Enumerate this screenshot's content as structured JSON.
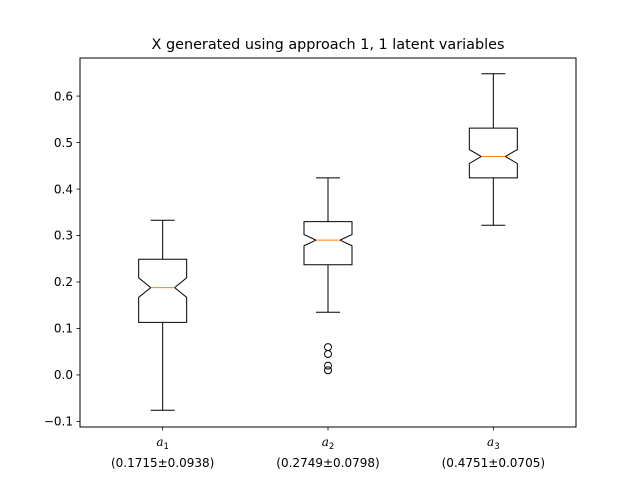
{
  "chart_data": {
    "type": "box",
    "title": "X generated using approach 1, 1 latent variables",
    "xlabel": "",
    "ylabel": "",
    "ylim": [
      -0.112,
      0.682
    ],
    "yticks": [
      -0.1,
      0.0,
      0.1,
      0.2,
      0.3,
      0.4,
      0.5,
      0.6
    ],
    "ytick_labels": [
      "−0.1",
      "0.0",
      "0.1",
      "0.2",
      "0.3",
      "0.4",
      "0.5",
      "0.6"
    ],
    "notched": true,
    "grid": false,
    "categories": [
      {
        "base": "a",
        "sub": "1",
        "stats": "(0.1715±0.0938)"
      },
      {
        "base": "a",
        "sub": "2",
        "stats": "(0.2749±0.0798)"
      },
      {
        "base": "a",
        "sub": "3",
        "stats": "(0.4751±0.0705)"
      }
    ],
    "boxes": [
      {
        "whisker_low": -0.076,
        "q1": 0.113,
        "median": 0.188,
        "q3": 0.249,
        "whisker_high": 0.333,
        "notch_low": 0.167,
        "notch_high": 0.209,
        "outliers": []
      },
      {
        "whisker_low": 0.135,
        "q1": 0.237,
        "median": 0.29,
        "q3": 0.33,
        "whisker_high": 0.424,
        "notch_low": 0.278,
        "notch_high": 0.302,
        "outliers": [
          0.06,
          0.045,
          0.02,
          0.01
        ]
      },
      {
        "whisker_low": 0.322,
        "q1": 0.424,
        "median": 0.47,
        "q3": 0.531,
        "whisker_high": 0.648,
        "notch_low": 0.455,
        "notch_high": 0.485,
        "outliers": []
      }
    ],
    "colors": {
      "box": "#000000",
      "median": "#ff7f0e",
      "background": "#ffffff"
    }
  }
}
